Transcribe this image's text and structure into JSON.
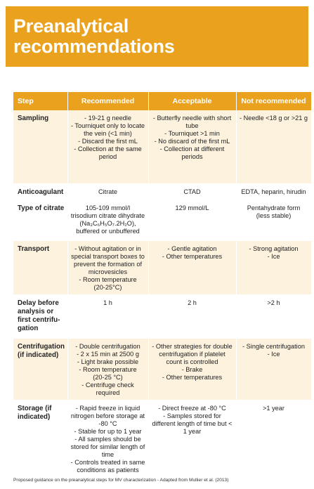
{
  "header": {
    "title": "Preanalytical\nrecommendations",
    "background": "#EAA21E"
  },
  "table": {
    "columns": [
      "Step",
      "Recommended",
      "Acceptable",
      "Not recommended"
    ],
    "rows": [
      {
        "step": "Sampling",
        "recommended": "- 19-21 g needle\n- Tourniquet only to locate the vein (<1 min)\n- Discard the first mL\n- Collection at the same period",
        "acceptable": "- Butterfly needle with short tube\n- Tourniquet >1 min\n- No discard of the first mL\n- Collection at different periods",
        "not_recommended": "- Needle <18 g or >21 g"
      },
      {
        "step": "Anticoagulant",
        "recommended": "Citrate",
        "acceptable": "CTAD",
        "not_recommended": "EDTA, heparin, hirudin"
      },
      {
        "step": "Type of citrate",
        "recommended": "105-109 mmol/l\ntrisodium citrate dihydrate\n(Na₃C₆H₅O₇.2H₂O),\nbuffered or unbuffered",
        "acceptable": "129 mmol/L",
        "not_recommended": "Pentahydrate form\n(less stable)"
      },
      {
        "step": "Transport",
        "recommended": "- Without agitation or in special transport boxes to prevent the formation of microvesicles\n- Room temperature\n(20-25°C)",
        "acceptable": "- Gentle agitation\n- Other temperatures",
        "not_recommended": "- Strong agitation\n- Ice"
      },
      {
        "step": "Delay before analysis or first centrifu-gation",
        "recommended": "1 h",
        "acceptable": "2 h",
        "not_recommended": ">2 h"
      },
      {
        "step": "Centrifugation (if indicated)",
        "recommended": "- Double centrifugation\n- 2 x 15 min at 2500 g\n- Light brake possible\n- Room temperature\n(20-25 °C)\n- Centrifuge check required",
        "acceptable": "- Other strategies for double centrifugation if platelet count is controlled\n- Brake\n- Other temperatures",
        "not_recommended": "- Single centrifugation\n- Ice"
      },
      {
        "step": "Storage (if indicated)",
        "recommended": "- Rapid freeze in liquid nitrogen before storage at -80 °C\n- Stable for up to 1 year\n- All samples should be stored for similar length of time\n- Controls treated in same conditions as patients",
        "acceptable": "- Direct freeze at -80 °C\n- Samples stored for different length of time but < 1 year",
        "not_recommended": ">1 year"
      }
    ]
  },
  "footer": "Proposed guidance on the preanalytical steps for MV characterization - Adapted from Mullier et al. (2013)",
  "colors": {
    "accent": "#EAA21E",
    "row_tint": "#FDF2DE"
  }
}
